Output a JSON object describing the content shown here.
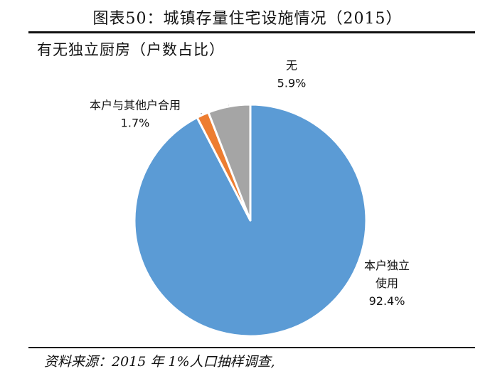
{
  "figure_title": "图表50：城镇存量住宅设施情况（2015）",
  "source_note": "资料来源：2015 年 1%人口抽样调查,",
  "chart_data": {
    "type": "pie",
    "title": "有无独立厨房（户数占比）",
    "slices": [
      {
        "label_lines": [
          "本户独立",
          "使用"
        ],
        "value": 92.4,
        "value_label": "92.4%",
        "color": "#5B9BD5"
      },
      {
        "label_lines": [
          "本户与其他户合用"
        ],
        "value": 1.7,
        "value_label": "1.7%",
        "color": "#ED7D31"
      },
      {
        "label_lines": [
          "无"
        ],
        "value": 5.9,
        "value_label": "5.9%",
        "color": "#A5A5A5"
      }
    ],
    "start_angle_deg": 0,
    "direction": "clockwise",
    "legend": "none",
    "data_labels": "outside"
  }
}
